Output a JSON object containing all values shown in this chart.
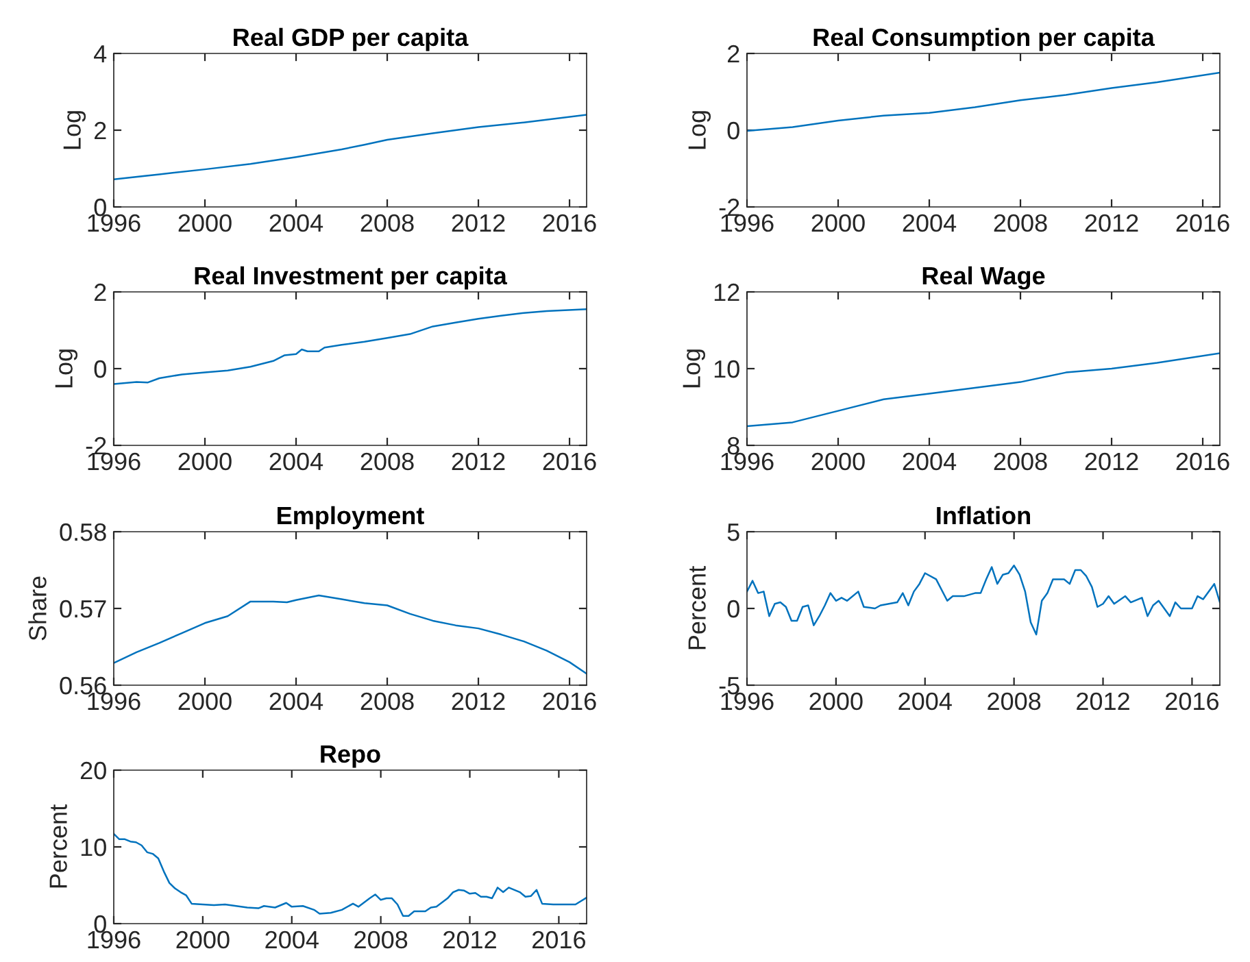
{
  "chart_data": [
    {
      "type": "line",
      "title": "Real GDP per capita",
      "ylabel": "Log",
      "xlim": [
        1996,
        2016.75
      ],
      "xticks": [
        1996,
        2000,
        2004,
        2008,
        2012,
        2016
      ],
      "ylim": [
        0,
        4
      ],
      "yticks": [
        0,
        2,
        4
      ],
      "grid": false,
      "legend": false,
      "series": [
        {
          "color": "#0072bd",
          "x": [
            1996,
            1998,
            2000,
            2002,
            2004,
            2006,
            2007,
            2008,
            2010,
            2012,
            2014,
            2016.75
          ],
          "values": [
            0.72,
            0.85,
            0.98,
            1.12,
            1.3,
            1.5,
            1.62,
            1.75,
            1.92,
            2.08,
            2.2,
            2.4
          ]
        }
      ]
    },
    {
      "type": "line",
      "title": "Real Consumption per capita",
      "ylabel": "Log",
      "xlim": [
        1996,
        2016.75
      ],
      "xticks": [
        1996,
        2000,
        2004,
        2008,
        2012,
        2016
      ],
      "ylim": [
        -2,
        2
      ],
      "yticks": [
        -2,
        0,
        2
      ],
      "grid": false,
      "legend": false,
      "series": [
        {
          "color": "#0072bd",
          "x": [
            1996,
            1998,
            2000,
            2002,
            2004,
            2006,
            2008,
            2010,
            2012,
            2014,
            2016.75
          ],
          "values": [
            -0.02,
            0.08,
            0.25,
            0.38,
            0.45,
            0.6,
            0.78,
            0.92,
            1.1,
            1.25,
            1.5
          ]
        }
      ]
    },
    {
      "type": "line",
      "title": "Real Investment per capita",
      "ylabel": "Log",
      "xlim": [
        1996,
        2016.75
      ],
      "xticks": [
        1996,
        2000,
        2004,
        2008,
        2012,
        2016
      ],
      "ylim": [
        -2,
        2
      ],
      "yticks": [
        -2,
        0,
        2
      ],
      "grid": false,
      "legend": false,
      "series": [
        {
          "color": "#0072bd",
          "x": [
            1996,
            1997,
            1997.5,
            1998,
            1999,
            2000,
            2001,
            2002,
            2003,
            2003.5,
            2004,
            2004.25,
            2004.5,
            2005,
            2005.25,
            2006,
            2007,
            2008,
            2009,
            2010,
            2011,
            2012,
            2013,
            2014,
            2015,
            2016.75
          ],
          "values": [
            -0.4,
            -0.35,
            -0.36,
            -0.25,
            -0.15,
            -0.1,
            -0.05,
            0.05,
            0.2,
            0.35,
            0.38,
            0.5,
            0.45,
            0.45,
            0.55,
            0.62,
            0.7,
            0.8,
            0.9,
            1.1,
            1.2,
            1.3,
            1.38,
            1.45,
            1.5,
            1.55
          ]
        }
      ]
    },
    {
      "type": "line",
      "title": "Real Wage",
      "ylabel": "Log",
      "xlim": [
        1996,
        2016.75
      ],
      "xticks": [
        1996,
        2000,
        2004,
        2008,
        2012,
        2016
      ],
      "ylim": [
        8,
        12
      ],
      "yticks": [
        8,
        10,
        12
      ],
      "grid": false,
      "legend": false,
      "series": [
        {
          "color": "#0072bd",
          "x": [
            1996,
            1998,
            2000,
            2002,
            2004,
            2006,
            2008,
            2010,
            2012,
            2014,
            2016.75
          ],
          "values": [
            8.5,
            8.6,
            8.9,
            9.2,
            9.35,
            9.5,
            9.65,
            9.9,
            10.0,
            10.15,
            10.4
          ]
        }
      ]
    },
    {
      "type": "line",
      "title": "Employment",
      "ylabel": "Share",
      "xlim": [
        1996,
        2016.75
      ],
      "xticks": [
        1996,
        2000,
        2004,
        2008,
        2012,
        2016
      ],
      "ylim": [
        0.56,
        0.58
      ],
      "yticks": [
        0.56,
        0.57,
        0.58
      ],
      "grid": false,
      "legend": false,
      "series": [
        {
          "color": "#0072bd",
          "x": [
            1996,
            1997,
            1998,
            1999,
            2000,
            2001,
            2002,
            2003,
            2003.6,
            2004,
            2005,
            2006,
            2007,
            2008,
            2009,
            2010,
            2011,
            2012,
            2013,
            2014,
            2015,
            2016,
            2016.75
          ],
          "values": [
            0.5629,
            0.5643,
            0.5655,
            0.5668,
            0.5681,
            0.569,
            0.5709,
            0.5709,
            0.5708,
            0.5711,
            0.5717,
            0.5712,
            0.5707,
            0.5704,
            0.5693,
            0.5684,
            0.5678,
            0.5674,
            0.5666,
            0.5657,
            0.5645,
            0.563,
            0.5615
          ]
        }
      ]
    },
    {
      "type": "line",
      "title": "Inflation",
      "ylabel": "Percent",
      "xlim": [
        1996,
        2017.25
      ],
      "xticks": [
        1996,
        2000,
        2004,
        2008,
        2012,
        2016
      ],
      "ylim": [
        -5,
        5
      ],
      "yticks": [
        -5,
        0,
        5
      ],
      "grid": false,
      "legend": false,
      "series": [
        {
          "color": "#0072bd",
          "x": [
            1996,
            1996.25,
            1996.5,
            1996.75,
            1997,
            1997.25,
            1997.5,
            1997.75,
            1998,
            1998.25,
            1998.5,
            1998.75,
            1999,
            1999.25,
            1999.5,
            1999.75,
            2000,
            2000.25,
            2000.5,
            2001,
            2001.25,
            2001.75,
            2002,
            2002.75,
            2003,
            2003.25,
            2003.5,
            2003.75,
            2004,
            2004.5,
            2005,
            2005.25,
            2005.75,
            2006.25,
            2006.5,
            2006.75,
            2007,
            2007.25,
            2007.5,
            2007.75,
            2008,
            2008.25,
            2008.5,
            2008.75,
            2009,
            2009.25,
            2009.5,
            2009.75,
            2010.25,
            2010.5,
            2010.75,
            2011,
            2011.25,
            2011.5,
            2011.75,
            2012,
            2012.25,
            2012.5,
            2013,
            2013.25,
            2013.75,
            2014,
            2014.25,
            2014.5,
            2015,
            2015.25,
            2015.5,
            2016,
            2016.25,
            2016.5,
            2017,
            2017.25
          ],
          "values": [
            1.1,
            1.8,
            1.0,
            1.1,
            -0.5,
            0.3,
            0.4,
            0.1,
            -0.8,
            -0.8,
            0.1,
            0.2,
            -1.1,
            -0.5,
            0.2,
            1.0,
            0.5,
            0.7,
            0.5,
            1.1,
            0.1,
            0.0,
            0.2,
            0.4,
            1.0,
            0.2,
            1.1,
            1.6,
            2.3,
            1.9,
            0.5,
            0.8,
            0.8,
            1.0,
            1.0,
            1.9,
            2.7,
            1.6,
            2.2,
            2.3,
            2.8,
            2.2,
            1.1,
            -0.9,
            -1.7,
            0.5,
            1.0,
            1.9,
            1.9,
            1.6,
            2.5,
            2.5,
            2.1,
            1.4,
            0.1,
            0.3,
            0.8,
            0.3,
            0.8,
            0.4,
            0.7,
            -0.5,
            0.2,
            0.5,
            -0.5,
            0.4,
            0.0,
            0.0,
            0.8,
            0.6,
            1.6,
            0.4
          ]
        }
      ]
    },
    {
      "type": "line",
      "title": "Repo",
      "ylabel": "Percent",
      "xlim": [
        1996,
        2017.25
      ],
      "xticks": [
        1996,
        2000,
        2004,
        2008,
        2012,
        2016
      ],
      "ylim": [
        0,
        20
      ],
      "yticks": [
        0,
        10,
        20
      ],
      "grid": false,
      "legend": false,
      "series": [
        {
          "color": "#0072bd",
          "x": [
            1996,
            1996.25,
            1996.5,
            1996.75,
            1997,
            1997.25,
            1997.5,
            1997.75,
            1998,
            1998.25,
            1998.5,
            1998.75,
            1999,
            1999.25,
            1999.5,
            2000,
            2000.5,
            2001,
            2001.5,
            2002,
            2002.5,
            2002.75,
            2003.25,
            2003.75,
            2004,
            2004.5,
            2005,
            2005.25,
            2005.75,
            2006.25,
            2006.75,
            2007,
            2007.5,
            2007.75,
            2008,
            2008.25,
            2008.5,
            2008.75,
            2009,
            2009.25,
            2009.5,
            2010,
            2010.25,
            2010.5,
            2011,
            2011.25,
            2011.5,
            2011.75,
            2012,
            2012.25,
            2012.5,
            2012.75,
            2013,
            2013.25,
            2013.5,
            2013.75,
            2014.25,
            2014.5,
            2014.75,
            2015,
            2015.25,
            2015.75,
            2016.25,
            2016.75,
            2017.25
          ],
          "values": [
            11.7,
            11.0,
            11.0,
            10.7,
            10.6,
            10.2,
            9.3,
            9.1,
            8.5,
            6.8,
            5.3,
            4.6,
            4.1,
            3.7,
            2.6,
            2.5,
            2.4,
            2.5,
            2.3,
            2.1,
            2.0,
            2.3,
            2.1,
            2.7,
            2.2,
            2.3,
            1.8,
            1.3,
            1.4,
            1.8,
            2.6,
            2.2,
            3.3,
            3.8,
            3.1,
            3.3,
            3.3,
            2.5,
            1.0,
            1.0,
            1.6,
            1.6,
            2.1,
            2.2,
            3.3,
            4.1,
            4.4,
            4.3,
            3.9,
            4.0,
            3.5,
            3.5,
            3.3,
            4.7,
            4.1,
            4.7,
            4.1,
            3.5,
            3.6,
            4.4,
            2.6,
            2.5,
            2.5,
            2.5,
            3.4
          ]
        }
      ]
    }
  ]
}
